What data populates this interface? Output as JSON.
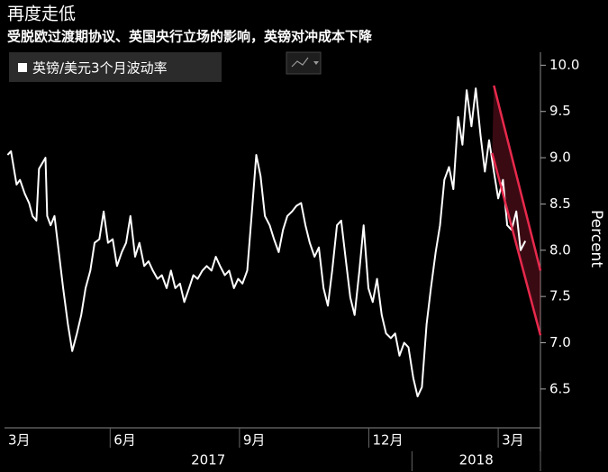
{
  "chart_data": {
    "type": "line",
    "title": "再度走低",
    "subtitle": "受脱欧过渡期协议、英国央行立场的影响，英镑对冲成本下降",
    "y_axis_label": "Percent",
    "series": [
      {
        "name": "英镑/美元3个月波动率",
        "color": "#ffffff",
        "x": [
          3.62,
          3.7,
          3.83,
          3.91,
          4.02,
          4.12,
          4.2,
          4.29,
          4.35,
          4.5,
          4.54,
          4.62,
          4.71,
          4.81,
          4.91,
          5.02,
          5.12,
          5.23,
          5.33,
          5.43,
          5.54,
          5.64,
          5.75,
          5.85,
          5.95,
          6.06,
          6.16,
          6.27,
          6.37,
          6.47,
          6.58,
          6.68,
          6.79,
          6.89,
          6.99,
          7.1,
          7.2,
          7.31,
          7.41,
          7.51,
          7.62,
          7.72,
          7.83,
          7.93,
          8.03,
          8.14,
          8.24,
          8.35,
          8.45,
          8.55,
          8.66,
          8.76,
          8.87,
          8.97,
          9.07,
          9.18,
          9.28,
          9.39,
          9.49,
          9.59,
          9.7,
          9.8,
          9.91,
          10.01,
          10.11,
          10.22,
          10.32,
          10.43,
          10.53,
          10.63,
          10.74,
          10.84,
          10.95,
          11.05,
          11.15,
          11.26,
          11.36,
          11.47,
          11.57,
          11.67,
          11.78,
          11.88,
          11.99,
          12.09,
          12.19,
          12.3,
          12.4,
          12.51,
          12.61,
          12.71,
          12.82,
          12.92,
          13.03,
          13.13,
          13.23,
          13.34,
          13.44,
          13.55,
          13.65,
          13.75,
          13.86,
          13.96,
          14.07,
          14.17,
          14.27,
          14.38,
          14.48,
          14.59,
          14.69,
          14.79,
          14.9,
          15.0,
          15.11,
          15.21,
          15.31,
          15.42,
          15.52,
          15.63
        ],
        "values": [
          9.03,
          9.07,
          8.71,
          8.76,
          8.61,
          8.51,
          8.37,
          8.32,
          8.88,
          9.0,
          8.37,
          8.27,
          8.37,
          7.98,
          7.59,
          7.2,
          6.91,
          7.1,
          7.3,
          7.59,
          7.78,
          8.08,
          8.12,
          8.42,
          8.08,
          8.12,
          7.83,
          7.98,
          8.08,
          8.37,
          7.93,
          8.08,
          7.83,
          7.88,
          7.78,
          7.69,
          7.73,
          7.59,
          7.78,
          7.59,
          7.64,
          7.44,
          7.59,
          7.73,
          7.69,
          7.78,
          7.83,
          7.78,
          7.93,
          7.83,
          7.73,
          7.78,
          7.59,
          7.69,
          7.64,
          7.78,
          8.37,
          9.03,
          8.8,
          8.37,
          8.27,
          8.12,
          7.98,
          8.22,
          8.37,
          8.42,
          8.48,
          8.51,
          8.27,
          8.08,
          7.93,
          8.03,
          7.59,
          7.4,
          7.78,
          8.27,
          8.32,
          7.88,
          7.49,
          7.3,
          7.78,
          8.27,
          7.59,
          7.44,
          7.69,
          7.3,
          7.1,
          7.05,
          7.1,
          6.86,
          7.0,
          6.95,
          6.62,
          6.42,
          6.52,
          7.2,
          7.59,
          7.98,
          8.27,
          8.76,
          8.9,
          8.66,
          9.44,
          9.14,
          9.73,
          9.34,
          9.75,
          9.24,
          8.85,
          9.19,
          8.85,
          8.56,
          8.76,
          8.27,
          8.22,
          8.42,
          8.0,
          8.1
        ]
      }
    ],
    "channel": {
      "color": "#e8294c",
      "upper": {
        "x": [
          14.9,
          15.98
        ],
        "values": [
          9.78,
          7.78
        ]
      },
      "lower": {
        "x": [
          14.86,
          15.98
        ],
        "values": [
          9.05,
          7.08
        ]
      }
    },
    "xlim": [
      3.55,
      15.98
    ],
    "xticks": [
      {
        "value": 3,
        "label": "3月"
      },
      {
        "value": 6,
        "label": "6月"
      },
      {
        "value": 9,
        "label": "9月"
      },
      {
        "value": 12,
        "label": "12月"
      },
      {
        "value": 15,
        "label": "3月"
      }
    ],
    "years": [
      {
        "label": "2017",
        "range": [
          3.55,
          13
        ]
      },
      {
        "label": "2018",
        "range": [
          13,
          15.98
        ]
      }
    ],
    "ylim": [
      6.08,
      10.14
    ],
    "yticks": [
      {
        "value": 10,
        "label": "10.0"
      },
      9.5,
      {
        "value": 9,
        "label": "9.0"
      },
      8.5,
      {
        "value": 8,
        "label": "8.0"
      },
      7.5,
      {
        "value": 7,
        "label": "7.0"
      },
      6.5
    ],
    "grid": false,
    "legend": "top-left"
  }
}
